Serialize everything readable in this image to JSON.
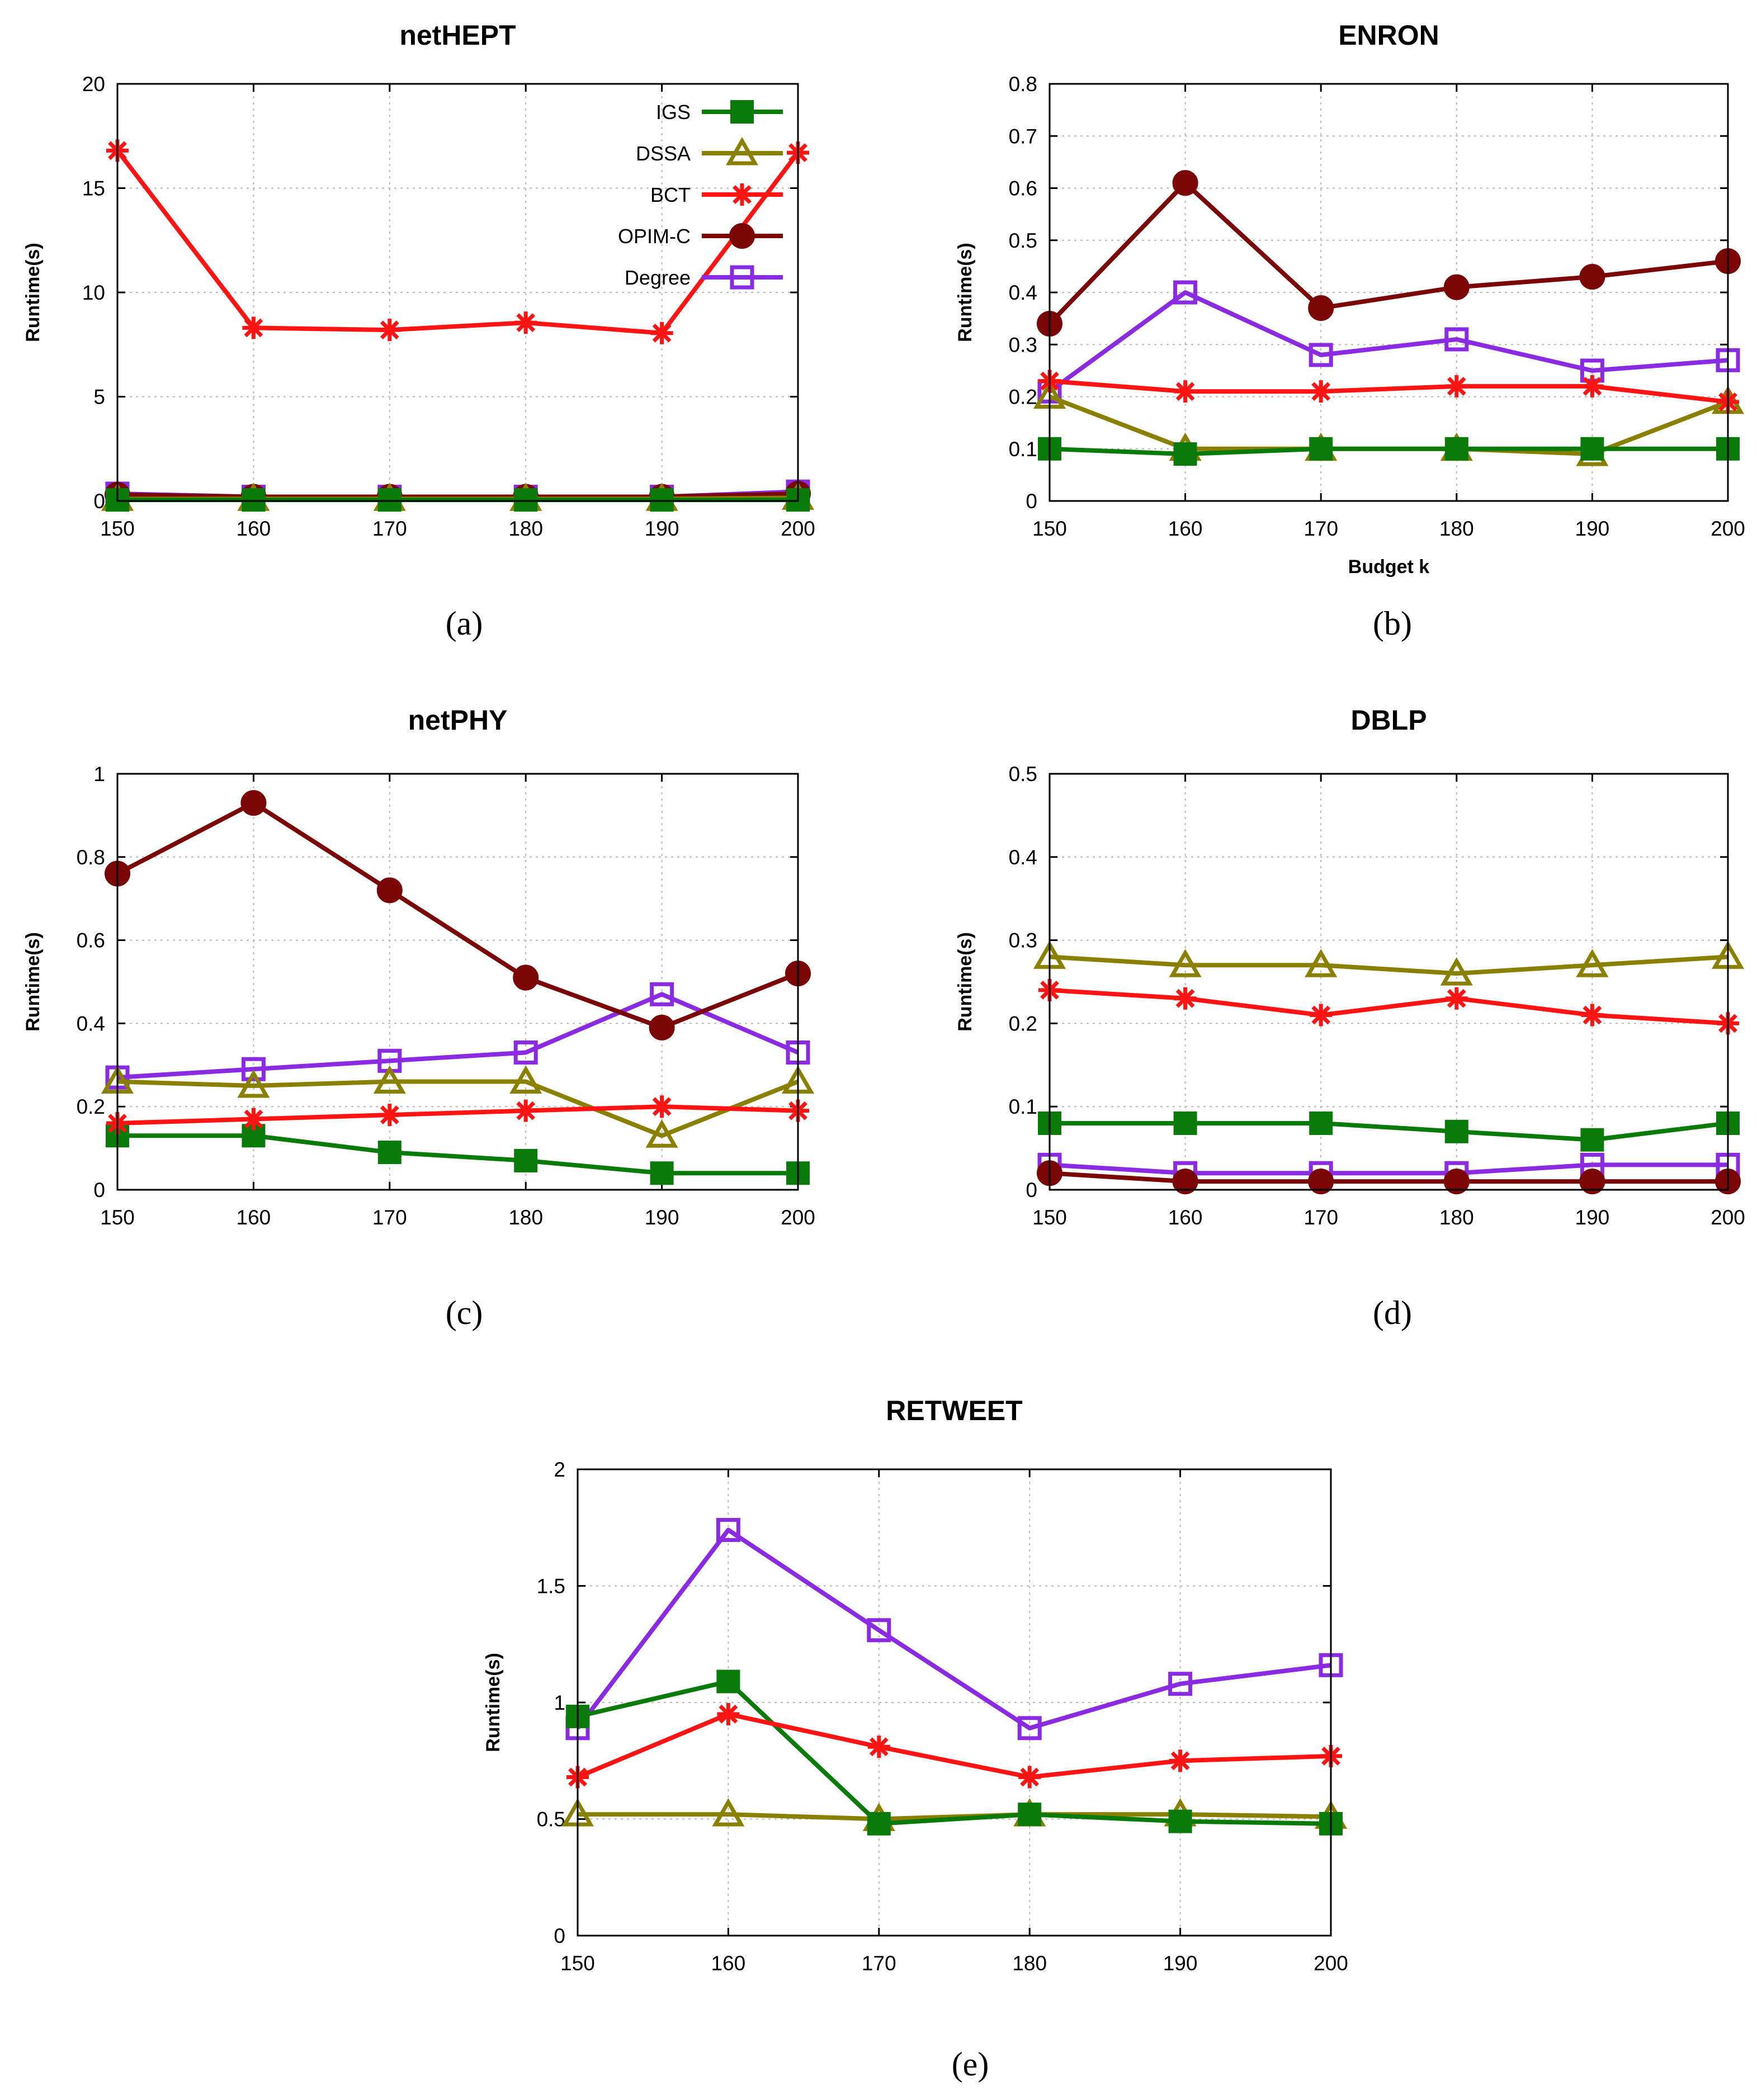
{
  "figure": {
    "x_categories": [
      "150",
      "160",
      "170",
      "180",
      "190",
      "200"
    ],
    "ylabel": "Runtime(s)",
    "series_styles": [
      {
        "name": "IGS",
        "color": "#0a7a0a",
        "marker": "filled-square"
      },
      {
        "name": "DSSA",
        "color": "#8a8000",
        "marker": "open-triangle"
      },
      {
        "name": "BCT",
        "color": "#ff1414",
        "marker": "star"
      },
      {
        "name": "OPIM-C",
        "color": "#7a0606",
        "marker": "filled-circle"
      },
      {
        "name": "Degree",
        "color": "#8a2be2",
        "marker": "open-square"
      }
    ]
  },
  "chart_data": [
    {
      "type": "line",
      "title": "netHEPT",
      "caption": "(a)",
      "xlabel": "",
      "ylabel": "Runtime(s)",
      "x": [
        150,
        160,
        170,
        180,
        190,
        200
      ],
      "x_tick_labels": [
        "150",
        "160",
        "170",
        "180",
        "190",
        "200"
      ],
      "ylim": [
        0,
        20
      ],
      "y_ticks": [
        0,
        5,
        10,
        15,
        20
      ],
      "y_tick_labels": [
        "0",
        "5",
        "10",
        "15",
        "20"
      ],
      "grid": true,
      "legend": "top-right",
      "series": [
        {
          "name": "IGS",
          "values": [
            0.05,
            0.05,
            0.05,
            0.05,
            0.05,
            0.05
          ]
        },
        {
          "name": "DSSA",
          "values": [
            0.1,
            0.1,
            0.1,
            0.1,
            0.1,
            0.15
          ]
        },
        {
          "name": "BCT",
          "values": [
            16.8,
            8.3,
            8.2,
            8.55,
            8.05,
            16.7
          ]
        },
        {
          "name": "OPIM-C",
          "values": [
            0.3,
            0.2,
            0.2,
            0.2,
            0.2,
            0.35
          ]
        },
        {
          "name": "Degree",
          "values": [
            0.35,
            0.2,
            0.2,
            0.2,
            0.2,
            0.45
          ]
        }
      ]
    },
    {
      "type": "line",
      "title": "ENRON",
      "caption": "(b)",
      "xlabel": "Budget k",
      "ylabel": "Runtime(s)",
      "x": [
        150,
        160,
        170,
        180,
        190,
        200
      ],
      "x_tick_labels": [
        "150",
        "160",
        "170",
        "180",
        "190",
        "200"
      ],
      "ylim": [
        0,
        0.8
      ],
      "y_ticks": [
        0,
        0.1,
        0.2,
        0.3,
        0.4,
        0.5,
        0.6,
        0.7,
        0.8
      ],
      "y_tick_labels": [
        "0",
        "0.1",
        "0.2",
        "0.3",
        "0.4",
        "0.5",
        "0.6",
        "0.7",
        "0.8"
      ],
      "grid": true,
      "legend": "none",
      "series": [
        {
          "name": "IGS",
          "values": [
            0.1,
            0.09,
            0.1,
            0.1,
            0.1,
            0.1
          ]
        },
        {
          "name": "DSSA",
          "values": [
            0.2,
            0.1,
            0.1,
            0.1,
            0.09,
            0.19
          ]
        },
        {
          "name": "BCT",
          "values": [
            0.23,
            0.21,
            0.21,
            0.22,
            0.22,
            0.19
          ]
        },
        {
          "name": "OPIM-C",
          "values": [
            0.34,
            0.61,
            0.37,
            0.41,
            0.43,
            0.46
          ]
        },
        {
          "name": "Degree",
          "values": [
            0.21,
            0.4,
            0.28,
            0.31,
            0.25,
            0.27
          ]
        }
      ]
    },
    {
      "type": "line",
      "title": "netPHY",
      "caption": "(c)",
      "xlabel": "",
      "ylabel": "Runtime(s)",
      "x": [
        150,
        160,
        170,
        180,
        190,
        200
      ],
      "x_tick_labels": [
        "150",
        "160",
        "170",
        "180",
        "190",
        "200"
      ],
      "ylim": [
        0,
        1
      ],
      "y_ticks": [
        0,
        0.2,
        0.4,
        0.6,
        0.8,
        1
      ],
      "y_tick_labels": [
        "0",
        "0.2",
        "0.4",
        "0.6",
        "0.8",
        "1"
      ],
      "grid": true,
      "legend": "none",
      "series": [
        {
          "name": "IGS",
          "values": [
            0.13,
            0.13,
            0.09,
            0.07,
            0.04,
            0.04
          ]
        },
        {
          "name": "DSSA",
          "values": [
            0.26,
            0.25,
            0.26,
            0.26,
            0.13,
            0.26
          ]
        },
        {
          "name": "BCT",
          "values": [
            0.16,
            0.17,
            0.18,
            0.19,
            0.2,
            0.19
          ]
        },
        {
          "name": "OPIM-C",
          "values": [
            0.76,
            0.93,
            0.72,
            0.51,
            0.39,
            0.52
          ]
        },
        {
          "name": "Degree",
          "values": [
            0.27,
            0.29,
            0.31,
            0.33,
            0.47,
            0.33
          ]
        }
      ]
    },
    {
      "type": "line",
      "title": "DBLP",
      "caption": "(d)",
      "xlabel": "",
      "ylabel": "Runtime(s)",
      "x": [
        150,
        160,
        170,
        180,
        190,
        200
      ],
      "x_tick_labels": [
        "150",
        "160",
        "170",
        "180",
        "190",
        "200"
      ],
      "ylim": [
        0,
        0.5
      ],
      "y_ticks": [
        0,
        0.1,
        0.2,
        0.3,
        0.4,
        0.5
      ],
      "y_tick_labels": [
        "0",
        "0.1",
        "0.2",
        "0.3",
        "0.4",
        "0.5"
      ],
      "grid": true,
      "legend": "none",
      "series": [
        {
          "name": "IGS",
          "values": [
            0.08,
            0.08,
            0.08,
            0.07,
            0.06,
            0.08
          ]
        },
        {
          "name": "DSSA",
          "values": [
            0.28,
            0.27,
            0.27,
            0.26,
            0.27,
            0.28
          ]
        },
        {
          "name": "BCT",
          "values": [
            0.24,
            0.23,
            0.21,
            0.23,
            0.21,
            0.2
          ]
        },
        {
          "name": "OPIM-C",
          "values": [
            0.02,
            0.01,
            0.01,
            0.01,
            0.01,
            0.01
          ]
        },
        {
          "name": "Degree",
          "values": [
            0.03,
            0.02,
            0.02,
            0.02,
            0.03,
            0.03
          ]
        }
      ]
    },
    {
      "type": "line",
      "title": "RETWEET",
      "caption": "(e)",
      "xlabel": "",
      "ylabel": "Runtime(s)",
      "x": [
        150,
        160,
        170,
        180,
        190,
        200
      ],
      "x_tick_labels": [
        "150",
        "160",
        "170",
        "180",
        "190",
        "200"
      ],
      "ylim": [
        0,
        2
      ],
      "y_ticks": [
        0,
        0.5,
        1,
        1.5,
        2
      ],
      "y_tick_labels": [
        "0",
        "0.5",
        "1",
        "1.5",
        "2"
      ],
      "grid": true,
      "legend": "none",
      "series": [
        {
          "name": "IGS",
          "values": [
            0.94,
            1.09,
            0.48,
            0.52,
            0.49,
            0.48
          ]
        },
        {
          "name": "DSSA",
          "values": [
            0.52,
            0.52,
            0.5,
            0.52,
            0.52,
            0.51
          ]
        },
        {
          "name": "BCT",
          "values": [
            0.68,
            0.95,
            0.81,
            0.68,
            0.75,
            0.77
          ]
        },
        {
          "name": "Degree",
          "values": [
            0.89,
            1.74,
            1.31,
            0.89,
            1.08,
            1.16
          ]
        }
      ]
    }
  ]
}
